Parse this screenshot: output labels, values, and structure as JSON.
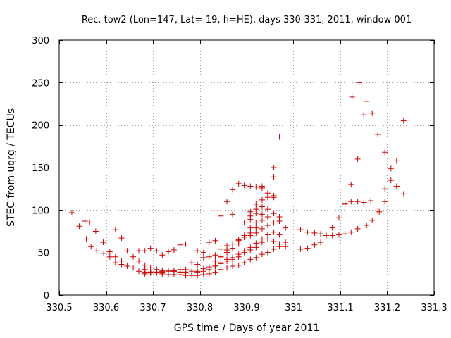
{
  "chart_data": {
    "type": "scatter",
    "title": "Rec. tow2 (Lon=147, Lat=-19, h=HE), days 330-331, 2011, window 001",
    "xlabel": "GPS time / Days of year 2011",
    "ylabel": "STEC from uqrg / TECUs",
    "xlim": [
      330.5,
      331.3
    ],
    "ylim": [
      0,
      300
    ],
    "xticks": [
      330.5,
      330.6,
      330.7,
      330.8,
      330.9,
      331,
      331.1,
      331.2,
      331.3
    ],
    "xtick_labels": [
      "330.5",
      "330.6",
      "330.7",
      "330.8",
      "330.9",
      "331",
      "331.1",
      "331.2",
      "331.3"
    ],
    "yticks": [
      0,
      50,
      100,
      150,
      200,
      250,
      300
    ],
    "ytick_labels": [
      "0",
      "50",
      "100",
      "150",
      "200",
      "250",
      "300"
    ],
    "grid": true,
    "marker": "+",
    "color": "#cc0000",
    "series": [
      {
        "name": "STEC",
        "x": [
          330.527,
          330.543,
          330.555,
          330.565,
          330.578,
          330.594,
          330.62,
          330.633,
          330.558,
          330.568,
          330.58,
          330.595,
          330.608,
          330.62,
          330.633,
          330.645,
          330.658,
          330.67,
          330.683,
          330.695,
          330.708,
          330.72,
          330.733,
          330.745,
          330.758,
          330.77,
          330.608,
          330.62,
          330.633,
          330.645,
          330.658,
          330.67,
          330.683,
          330.695,
          330.708,
          330.72,
          330.733,
          330.745,
          330.758,
          330.77,
          330.783,
          330.795,
          330.808,
          330.82,
          330.833,
          330.845,
          330.858,
          330.87,
          330.883,
          330.895,
          330.908,
          330.92,
          330.933,
          330.67,
          330.683,
          330.695,
          330.708,
          330.72,
          330.733,
          330.745,
          330.758,
          330.77,
          330.783,
          330.795,
          330.808,
          330.82,
          330.833,
          330.845,
          330.858,
          330.87,
          330.883,
          330.895,
          330.908,
          330.92,
          330.933,
          330.945,
          330.958,
          330.97,
          330.983,
          330.683,
          330.695,
          330.708,
          330.72,
          330.733,
          330.745,
          330.758,
          330.77,
          330.783,
          330.795,
          330.808,
          330.82,
          330.833,
          330.845,
          330.858,
          330.87,
          330.883,
          330.895,
          330.908,
          330.92,
          330.933,
          330.945,
          330.958,
          330.683,
          330.695,
          330.708,
          330.72,
          330.733,
          330.745,
          330.758,
          330.77,
          330.783,
          330.795,
          330.808,
          330.82,
          330.833,
          330.845,
          330.858,
          330.87,
          330.883,
          330.895,
          330.908,
          330.92,
          330.933,
          330.945,
          330.958,
          330.97,
          330.983,
          330.795,
          330.808,
          330.82,
          330.833,
          330.845,
          330.858,
          330.87,
          330.883,
          330.895,
          330.908,
          330.92,
          330.933,
          330.945,
          330.958,
          330.97,
          330.833,
          330.845,
          330.858,
          330.87,
          330.883,
          330.895,
          330.908,
          330.92,
          330.933,
          330.945,
          330.958,
          330.97,
          330.845,
          330.858,
          330.87,
          330.883,
          330.895,
          330.908,
          330.92,
          330.933,
          330.945,
          330.958,
          330.908,
          330.92,
          330.933,
          330.945,
          330.958,
          330.97,
          330.983,
          330.895,
          330.908,
          330.92,
          330.933,
          330.945,
          330.958,
          330.87,
          330.908,
          330.92,
          330.933,
          330.958,
          330.97,
          331.015,
          331.03,
          331.045,
          331.058,
          331.07,
          331.083,
          331.097,
          331.11,
          331.123,
          331.137,
          331.15,
          331.165,
          331.18,
          331.195,
          331.208,
          331.22,
          331.235,
          331.015,
          331.03,
          331.045,
          331.058,
          331.07,
          331.083,
          331.097,
          331.11,
          331.123,
          331.137,
          331.11,
          331.123,
          331.137,
          331.15,
          331.125,
          331.14,
          331.155,
          331.168,
          331.18,
          331.195,
          331.208,
          331.22,
          331.235,
          331.156,
          331.168,
          331.183,
          331.195
        ],
        "y": [
          97,
          81,
          87,
          85,
          75,
          62,
          77,
          67,
          66,
          57,
          52,
          49,
          51,
          45,
          40,
          34,
          32,
          28,
          27,
          27,
          27,
          28,
          29,
          29,
          30,
          30,
          45,
          38,
          36,
          52,
          45,
          52,
          52,
          55,
          52,
          47,
          51,
          53,
          59,
          60,
          38,
          52,
          50,
          62,
          64,
          93,
          110,
          124,
          131,
          129,
          128,
          127,
          128,
          40,
          35,
          32,
          30,
          29,
          29,
          28,
          27,
          26,
          26,
          27,
          28,
          30,
          34,
          38,
          42,
          42,
          45,
          50,
          53,
          56,
          62,
          66,
          63,
          57,
          57,
          30,
          27,
          27,
          25,
          24,
          24,
          24,
          23,
          23,
          23,
          24,
          25,
          27,
          30,
          32,
          34,
          35,
          38,
          42,
          44,
          48,
          50,
          54,
          25,
          26,
          26,
          27,
          28,
          28,
          27,
          27,
          28,
          28,
          31,
          33,
          35,
          37,
          40,
          44,
          48,
          52,
          56,
          61,
          66,
          71,
          74,
          71,
          62,
          36,
          44,
          45,
          47,
          54,
          58,
          60,
          65,
          68,
          70,
          73,
          78,
          82,
          85,
          92,
          40,
          45,
          53,
          55,
          60,
          68,
          73,
          79,
          88,
          92,
          96,
          186,
          45,
          50,
          55,
          64,
          70,
          79,
          85,
          95,
          101,
          117,
          98,
          107,
          112,
          120,
          139,
          87,
          79,
          85,
          89,
          96,
          104,
          115,
          150,
          95,
          93,
          101,
          126,
          115,
          60,
          77,
          74,
          73,
          72,
          70,
          79,
          91,
          108,
          110,
          110,
          109,
          111,
          99,
          110,
          135,
          158,
          205,
          54,
          55,
          59,
          62,
          70,
          70,
          71,
          72,
          74,
          78,
          107,
          130,
          160,
          212,
          233,
          250,
          228,
          214,
          189,
          168,
          149,
          128,
          119,
          82,
          88,
          98,
          125
        ]
      }
    ]
  }
}
